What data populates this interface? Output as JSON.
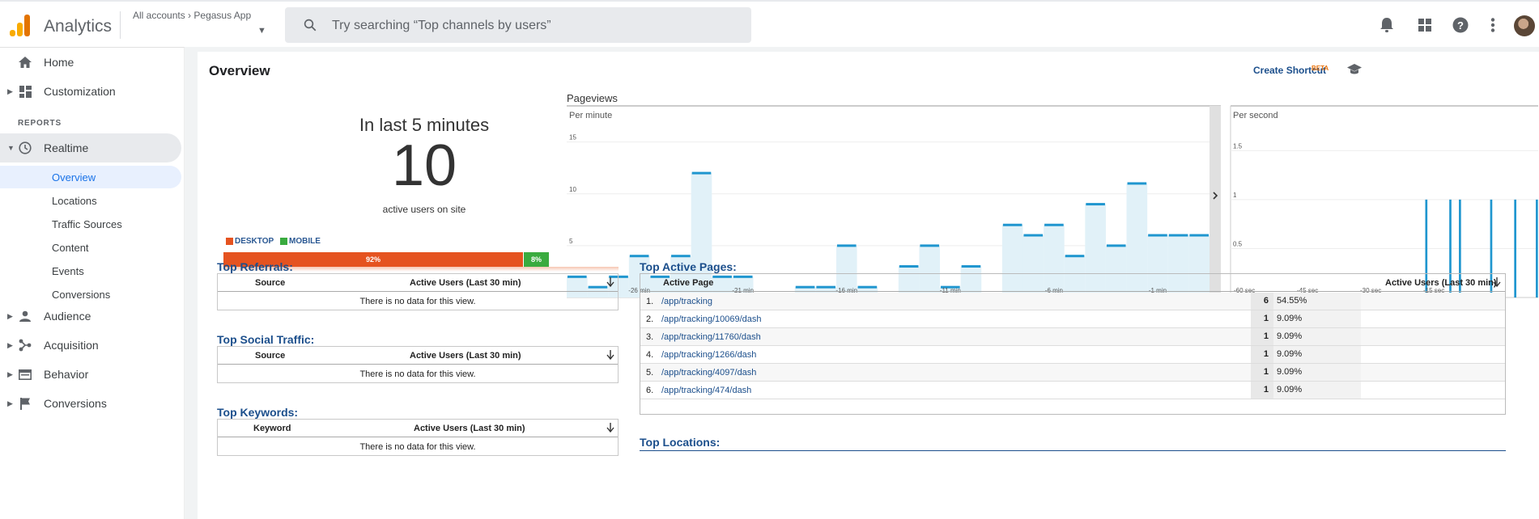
{
  "header": {
    "app_name": "Analytics",
    "breadcrumb_root": "All accounts",
    "breadcrumb_property": "Pegasus App",
    "search_placeholder": "Try searching “Top channels by users”",
    "icons": [
      "bell-icon",
      "apps-grid-icon",
      "help-icon",
      "more-vert-icon"
    ]
  },
  "sidebar": {
    "items": [
      {
        "label": "Home",
        "icon": "home-icon"
      },
      {
        "label": "Customization",
        "icon": "dashboard-icon"
      }
    ],
    "section_label": "REPORTS",
    "realtime": {
      "label": "Realtime",
      "icon": "clock-icon"
    },
    "realtime_sub": [
      "Overview",
      "Locations",
      "Traffic Sources",
      "Content",
      "Events",
      "Conversions"
    ],
    "lower_items": [
      {
        "label": "Audience",
        "icon": "person-icon"
      },
      {
        "label": "Acquisition",
        "icon": "acquisition-icon"
      },
      {
        "label": "Behavior",
        "icon": "behavior-icon"
      },
      {
        "label": "Conversions",
        "icon": "flag-icon"
      }
    ]
  },
  "overview": {
    "title": "Overview",
    "create_shortcut": "Create Shortcut",
    "beta": "BETA",
    "in_last": "In last 5 minutes",
    "active_count": "10",
    "active_label": "active users on site",
    "desktop_label": "DESKTOP",
    "mobile_label": "MOBILE",
    "desktop_pct": "92%",
    "mobile_pct": "8%",
    "desktop_share": 0.92,
    "colors": {
      "desktop": "#e55320",
      "mobile": "#3aab3f",
      "accent": "#1c4f8c",
      "bars": "#1f96cf"
    }
  },
  "pageviews": {
    "title": "Pageviews",
    "per_minute_label": "Per minute",
    "per_second_label": "Per second",
    "minute_ticks": [
      "-26 min",
      "-21 min",
      "-16 min",
      "-11 min",
      "-6 min",
      "-1 min"
    ],
    "minute_y_ticks": [
      "15",
      "10",
      "5"
    ],
    "second_ticks": [
      "-60 sec",
      "-45 sec",
      "-30 sec",
      "-15 sec"
    ],
    "second_y_ticks": [
      "1.5",
      "1",
      "0.5"
    ]
  },
  "chart_data": [
    {
      "type": "bar",
      "title": "Per minute",
      "x_ticks": [
        "-26 min",
        "-21 min",
        "-16 min",
        "-11 min",
        "-6 min",
        "-1 min"
      ],
      "values": [
        2,
        1,
        2,
        4,
        2,
        4,
        12,
        2,
        2,
        0,
        0,
        1,
        1,
        5,
        1,
        0,
        3,
        5,
        1,
        3,
        0,
        7,
        6,
        7,
        4,
        9,
        5,
        11,
        6,
        6,
        6
      ],
      "ylim": [
        0,
        17
      ]
    },
    {
      "type": "bar",
      "title": "Per second",
      "x_ticks": [
        "-60 sec",
        "-45 sec",
        "-30 sec",
        "-15 sec"
      ],
      "values": [
        0,
        0,
        0,
        0,
        0,
        0,
        0,
        0,
        0,
        0,
        0,
        0,
        0,
        0,
        0,
        0,
        0,
        0,
        0,
        0,
        0,
        0,
        0,
        0,
        0,
        0,
        0,
        0,
        0,
        0,
        0,
        0,
        0,
        0,
        0,
        0,
        0,
        0,
        0,
        0,
        0,
        0,
        0,
        0,
        0,
        0,
        0,
        0,
        0,
        0,
        0,
        0,
        0,
        0,
        0,
        0,
        0,
        0,
        0,
        0,
        0,
        0,
        0,
        0,
        0,
        0,
        0,
        0,
        0,
        0,
        0,
        0,
        0,
        0,
        0,
        0,
        0,
        0,
        0,
        0,
        0,
        1,
        0,
        0,
        0,
        0,
        0,
        0,
        0,
        0,
        0,
        1,
        0,
        0,
        0,
        1,
        0,
        0,
        0,
        0,
        0,
        0,
        0,
        0,
        0,
        0,
        0,
        0,
        1,
        0,
        0,
        0,
        0,
        0,
        0,
        0,
        0,
        0,
        1,
        0,
        0,
        0,
        0,
        0,
        0,
        0,
        0,
        1
      ],
      "ylim": [
        0,
        1.8
      ]
    }
  ],
  "referrals": {
    "title": "Top Referrals:",
    "col1": "Source",
    "col2": "Active Users (Last 30 min)",
    "empty": "There is no data for this view."
  },
  "social": {
    "title": "Top Social Traffic:",
    "col1": "Source",
    "col2": "Active Users (Last 30 min)",
    "empty": "There is no data for this view."
  },
  "keywords": {
    "title": "Top Keywords:",
    "col1": "Keyword",
    "col2": "Active Users (Last 30 min)",
    "empty": "There is no data for this view."
  },
  "active_pages": {
    "title": "Top Active Pages:",
    "col1": "Active Page",
    "col2": "Active Users (Last 30 min)",
    "rows": [
      {
        "num": "1.",
        "page": "/app/tracking",
        "count": "6",
        "pct": "54.55%"
      },
      {
        "num": "2.",
        "page": "/app/tracking/10069/dash",
        "count": "1",
        "pct": "9.09%"
      },
      {
        "num": "3.",
        "page": "/app/tracking/11760/dash",
        "count": "1",
        "pct": "9.09%"
      },
      {
        "num": "4.",
        "page": "/app/tracking/1266/dash",
        "count": "1",
        "pct": "9.09%"
      },
      {
        "num": "5.",
        "page": "/app/tracking/4097/dash",
        "count": "1",
        "pct": "9.09%"
      },
      {
        "num": "6.",
        "page": "/app/tracking/474/dash",
        "count": "1",
        "pct": "9.09%"
      }
    ]
  },
  "locations": {
    "title": "Top Locations:"
  }
}
